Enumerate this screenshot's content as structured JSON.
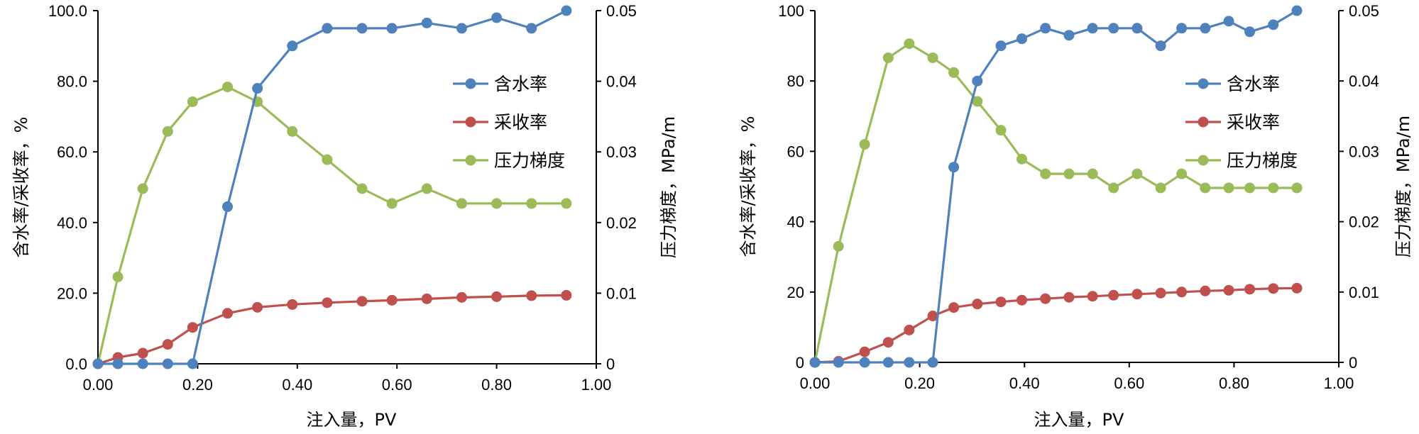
{
  "colors": {
    "water_cut": "#4f81bd",
    "recovery": "#c0504d",
    "pressure": "#9bbb59"
  },
  "chart_data": [
    {
      "type": "line",
      "xlabel": "注入量，PV",
      "ylabel": "含水率/采收率，%",
      "y2label": "压力梯度，MPa/m",
      "xlim": [
        0,
        1.0
      ],
      "ylim": [
        0,
        100
      ],
      "y2lim": [
        0,
        0.05
      ],
      "x_ticks": [
        "0.00",
        "0.20",
        "0.40",
        "0.60",
        "0.80",
        "1.00"
      ],
      "y_ticks": [
        "0.0",
        "20.0",
        "40.0",
        "60.0",
        "80.0",
        "100.0"
      ],
      "y2_ticks": [
        "0",
        "0.01",
        "0.02",
        "0.03",
        "0.04",
        "0.05"
      ],
      "legend": "right",
      "series": [
        {
          "name": "含水率",
          "axis": "left",
          "color_key": "water_cut",
          "x": [
            0,
            0.04,
            0.09,
            0.14,
            0.19,
            0.26,
            0.32,
            0.39,
            0.46,
            0.53,
            0.59,
            0.66,
            0.73,
            0.8,
            0.87,
            0.94
          ],
          "y": [
            0,
            0,
            0,
            0,
            0,
            44.5,
            78,
            90,
            95,
            95,
            95,
            96.5,
            95,
            98,
            95,
            100
          ]
        },
        {
          "name": "采收率",
          "axis": "left",
          "color_key": "recovery",
          "x": [
            0,
            0.04,
            0.09,
            0.14,
            0.19,
            0.26,
            0.32,
            0.39,
            0.46,
            0.53,
            0.59,
            0.66,
            0.73,
            0.8,
            0.87,
            0.94
          ],
          "y": [
            0,
            1.8,
            3,
            5.5,
            10.3,
            14.3,
            16,
            16.8,
            17.3,
            17.7,
            18,
            18.4,
            18.8,
            19,
            19.3,
            19.4
          ]
        },
        {
          "name": "压力梯度",
          "axis": "right",
          "color_key": "pressure",
          "x": [
            0,
            0.04,
            0.09,
            0.14,
            0.19,
            0.26,
            0.32,
            0.39,
            0.46,
            0.53,
            0.59,
            0.66,
            0.73,
            0.8,
            0.87,
            0.94
          ],
          "y": [
            0,
            0.0123,
            0.0248,
            0.0329,
            0.0371,
            0.0392,
            0.0371,
            0.0329,
            0.0289,
            0.0248,
            0.0227,
            0.0248,
            0.0227,
            0.0227,
            0.0227,
            0.0227
          ]
        }
      ]
    },
    {
      "type": "line",
      "xlabel": "注入量，PV",
      "ylabel": "含水率/采收率，%",
      "y2label": "压力梯度，MPa/m",
      "xlim": [
        0,
        1.0
      ],
      "ylim": [
        0,
        100
      ],
      "y2lim": [
        0,
        0.05
      ],
      "x_ticks": [
        "0.00",
        "0.20",
        "0.40",
        "0.60",
        "0.80",
        "1.00"
      ],
      "y_ticks": [
        "0",
        "20",
        "40",
        "60",
        "80",
        "100"
      ],
      "y2_ticks": [
        "0",
        "0.01",
        "0.02",
        "0.03",
        "0.04",
        "0.05"
      ],
      "legend": "right",
      "series": [
        {
          "name": "含水率",
          "axis": "left",
          "color_key": "water_cut",
          "x": [
            0,
            0.045,
            0.095,
            0.14,
            0.18,
            0.225,
            0.265,
            0.31,
            0.355,
            0.395,
            0.44,
            0.485,
            0.53,
            0.57,
            0.615,
            0.66,
            0.7,
            0.745,
            0.79,
            0.83,
            0.875,
            0.92
          ],
          "y": [
            0,
            0,
            0,
            0,
            0,
            0,
            55.5,
            80,
            90,
            92,
            95,
            93,
            95,
            95,
            95,
            90,
            95,
            95,
            97,
            94,
            96,
            100
          ]
        },
        {
          "name": "采收率",
          "axis": "left",
          "color_key": "recovery",
          "x": [
            0,
            0.045,
            0.095,
            0.14,
            0.18,
            0.225,
            0.265,
            0.31,
            0.355,
            0.395,
            0.44,
            0.485,
            0.53,
            0.57,
            0.615,
            0.66,
            0.7,
            0.745,
            0.79,
            0.83,
            0.875,
            0.92
          ],
          "y": [
            0,
            0.3,
            3,
            5.7,
            9.2,
            13.2,
            15.6,
            16.6,
            17.2,
            17.7,
            18.1,
            18.5,
            18.8,
            19.1,
            19.4,
            19.7,
            20,
            20.3,
            20.5,
            20.8,
            21,
            21.1
          ]
        },
        {
          "name": "压力梯度",
          "axis": "right",
          "color_key": "pressure",
          "x": [
            0,
            0.045,
            0.095,
            0.14,
            0.18,
            0.225,
            0.265,
            0.31,
            0.355,
            0.395,
            0.44,
            0.485,
            0.53,
            0.57,
            0.615,
            0.66,
            0.7,
            0.745,
            0.79,
            0.83,
            0.875,
            0.92
          ],
          "y": [
            0,
            0.0165,
            0.031,
            0.0433,
            0.0453,
            0.0433,
            0.0412,
            0.0371,
            0.033,
            0.0289,
            0.0268,
            0.0268,
            0.0268,
            0.0248,
            0.0268,
            0.0248,
            0.0268,
            0.0248,
            0.0248,
            0.0248,
            0.0248,
            0.0248
          ]
        }
      ]
    }
  ]
}
